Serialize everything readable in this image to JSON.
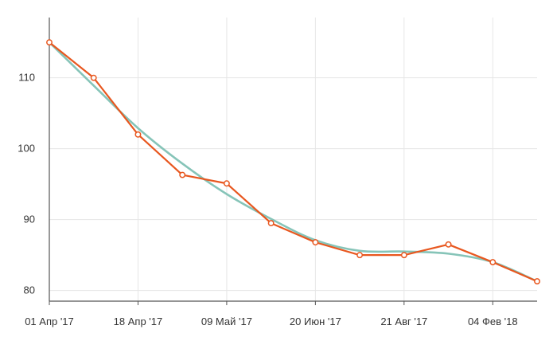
{
  "chart_data": {
    "type": "line",
    "title": "",
    "xlabel": "",
    "ylabel": "",
    "x": [
      "01 Апр '17",
      "",
      "18 Апр '17",
      "",
      "09 Май '17",
      "",
      "20 Июн '17",
      "",
      "21 Авг '17",
      "",
      "04 Фев '18",
      ""
    ],
    "x_tick_labels": [
      "01 Апр '17",
      "18 Апр '17",
      "09 Май '17",
      "20 Июн '17",
      "21 Авг '17",
      "04 Фев '18"
    ],
    "y_ticks": [
      80,
      90,
      100,
      110
    ],
    "ylim": [
      78.5,
      118.5
    ],
    "grid": true,
    "legend": "none",
    "series": [
      {
        "values": [
          115,
          110,
          102,
          96.3,
          95.1,
          89.5,
          86.8,
          85.0,
          85.0,
          86.5,
          84.0,
          81.3
        ],
        "color": "#e8571f",
        "markers": true
      },
      {
        "values": [
          115,
          108.9,
          102.9,
          97.9,
          93.6,
          90.1,
          87.1,
          85.6,
          85.5,
          85.2,
          84.0,
          81.3
        ],
        "color": "#86c4b8",
        "markers": false,
        "smooth": true
      }
    ]
  }
}
